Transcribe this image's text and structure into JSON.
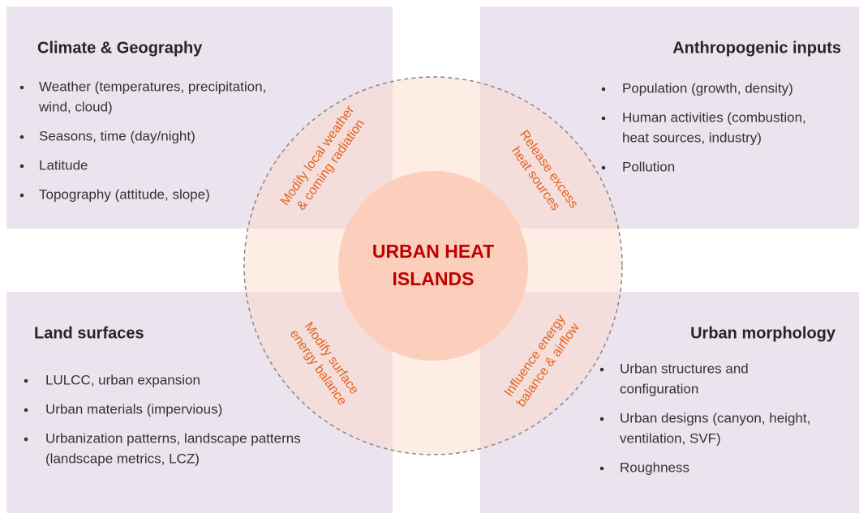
{
  "center": {
    "lines": [
      "URBAN HEAT",
      "ISLANDS"
    ]
  },
  "panels": [
    {
      "title": "Climate & Geography",
      "items": [
        [
          "Weather (temperatures, precipitation,",
          "wind, cloud)"
        ],
        [
          "Seasons, time (day/night)"
        ],
        [
          "Latitude"
        ],
        [
          "Topography (attitude, slope)"
        ]
      ]
    },
    {
      "title": "Anthropogenic inputs",
      "items": [
        [
          "Population (growth, density)"
        ],
        [
          "Human activities (combustion,",
          "heat sources, industry)"
        ],
        [
          "Pollution"
        ]
      ]
    },
    {
      "title": "Land surfaces",
      "items": [
        [
          "LULCC, urban expansion"
        ],
        [
          "Urban materials (impervious)"
        ],
        [
          "Urbanization patterns, landscape patterns",
          "(landscape metrics, LCZ)"
        ]
      ]
    },
    {
      "title": "Urban morphology",
      "items": [
        [
          "Urban structures and",
          "configuration"
        ],
        [
          "Urban designs (canyon, height,",
          "ventilation, SVF)"
        ],
        [
          "Roughness"
        ]
      ]
    }
  ],
  "links": [
    {
      "lines": [
        "Modify local weather",
        "& coming radiation"
      ]
    },
    {
      "lines": [
        "Release excess",
        "heat sources"
      ]
    },
    {
      "lines": [
        "Modify surface",
        "energy balance"
      ]
    },
    {
      "lines": [
        "Influence energy",
        "balance & airflow"
      ]
    }
  ]
}
